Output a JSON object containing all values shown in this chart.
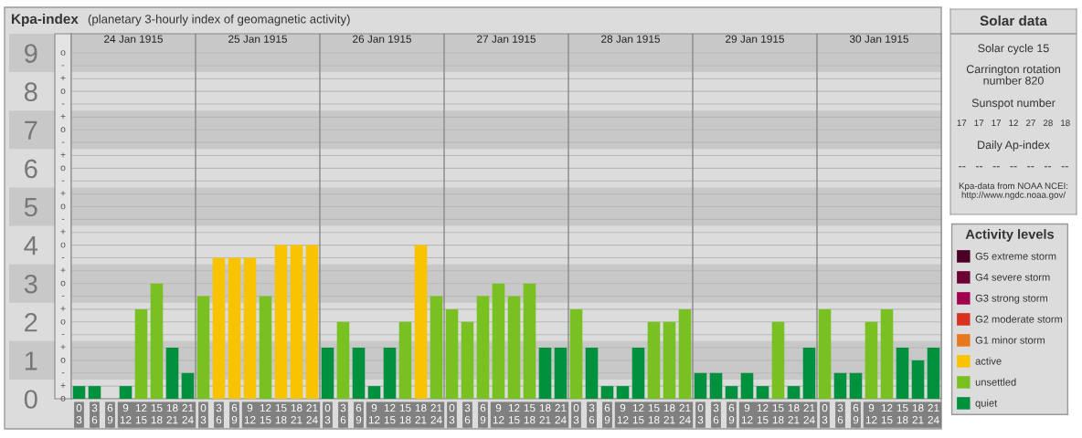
{
  "chart_data": [
    {
      "type": "bar",
      "title": "Kpa-index",
      "subtitle": "(planetary 3-hourly index of geomagnetic activity)",
      "categories": [
        "0\n3",
        "3\n6",
        "6\n9",
        "9\n12",
        "12\n15",
        "15\n18",
        "18\n21",
        "21\n24",
        "0\n3",
        "3\n6",
        "6\n9",
        "9\n12",
        "12\n15",
        "15\n18",
        "18\n21",
        "21\n24",
        "0\n3",
        "3\n6",
        "6\n9",
        "9\n12",
        "12\n15",
        "15\n18",
        "18\n21",
        "21\n24",
        "0\n3",
        "3\n6",
        "6\n9",
        "9\n12",
        "12\n15",
        "15\n18",
        "18\n21",
        "21\n24",
        "0\n3",
        "3\n6",
        "6\n9",
        "9\n12",
        "12\n15",
        "15\n18",
        "18\n21",
        "21\n24",
        "0\n3",
        "3\n6",
        "6\n9",
        "9\n12",
        "12\n15",
        "15\n18",
        "18\n21",
        "21\n24",
        "0\n3",
        "3\n6",
        "6\n9",
        "9\n12",
        "12\n15",
        "15\n18",
        "18\n21",
        "21\n24"
      ],
      "stacked": true,
      "series": [
        {
          "name": "G5 extreme storm",
          "color": "#4a0024",
          "values": [
            null,
            null,
            null,
            null,
            null,
            null,
            null,
            null,
            null,
            null,
            null,
            null,
            null,
            null,
            null,
            null,
            null,
            null,
            null,
            null,
            null,
            null,
            null,
            null,
            null,
            null,
            null,
            null,
            null,
            null,
            null,
            null,
            null,
            null,
            null,
            null,
            null,
            null,
            null,
            null,
            null,
            null,
            null,
            null,
            null,
            null,
            null,
            null,
            null,
            null,
            null,
            null,
            null,
            null,
            null,
            null
          ]
        },
        {
          "name": "G4 severe storm",
          "color": "#6c0036",
          "values": [
            null,
            null,
            null,
            null,
            null,
            null,
            null,
            null,
            null,
            null,
            null,
            null,
            null,
            null,
            null,
            null,
            null,
            null,
            null,
            null,
            null,
            null,
            null,
            null,
            null,
            null,
            null,
            null,
            null,
            null,
            null,
            null,
            null,
            null,
            null,
            null,
            null,
            null,
            null,
            null,
            null,
            null,
            null,
            null,
            null,
            null,
            null,
            null,
            null,
            null,
            null,
            null,
            null,
            null,
            null,
            null
          ]
        },
        {
          "name": "G3 strong storm",
          "color": "#a0004e",
          "values": [
            null,
            null,
            null,
            null,
            null,
            null,
            null,
            null,
            null,
            null,
            null,
            null,
            null,
            null,
            null,
            null,
            null,
            null,
            null,
            null,
            null,
            null,
            null,
            null,
            null,
            null,
            null,
            null,
            null,
            null,
            null,
            null,
            null,
            null,
            null,
            null,
            null,
            null,
            null,
            null,
            null,
            null,
            null,
            null,
            null,
            null,
            null,
            null,
            null,
            null,
            null,
            null,
            null,
            null,
            null,
            null
          ]
        },
        {
          "name": "G2 moderate storm",
          "color": "#d8321e",
          "values": [
            null,
            null,
            null,
            null,
            null,
            null,
            null,
            null,
            null,
            null,
            null,
            null,
            null,
            null,
            null,
            null,
            null,
            null,
            null,
            null,
            null,
            null,
            null,
            null,
            null,
            null,
            null,
            null,
            null,
            null,
            null,
            null,
            null,
            null,
            null,
            null,
            null,
            null,
            null,
            null,
            null,
            null,
            null,
            null,
            null,
            null,
            null,
            null,
            null,
            null,
            null,
            null,
            null,
            null,
            null,
            null
          ]
        },
        {
          "name": "G1 minor storm",
          "color": "#e8781e",
          "values": [
            null,
            null,
            null,
            null,
            null,
            null,
            null,
            null,
            null,
            null,
            null,
            null,
            null,
            null,
            null,
            null,
            null,
            null,
            null,
            null,
            null,
            null,
            null,
            null,
            null,
            null,
            null,
            null,
            null,
            null,
            null,
            null,
            null,
            null,
            null,
            null,
            null,
            null,
            null,
            null,
            null,
            null,
            null,
            null,
            null,
            null,
            null,
            null,
            null,
            null,
            null,
            null,
            null,
            null,
            null,
            null
          ]
        },
        {
          "name": "active",
          "color": "#f8c300",
          "values": [
            null,
            null,
            null,
            null,
            null,
            null,
            null,
            null,
            null,
            3.67,
            3.67,
            3.67,
            null,
            4,
            4,
            4,
            null,
            null,
            null,
            null,
            null,
            null,
            4,
            null,
            null,
            null,
            null,
            null,
            null,
            null,
            null,
            null,
            null,
            null,
            null,
            null,
            null,
            null,
            null,
            null,
            null,
            null,
            null,
            null,
            null,
            null,
            null,
            null,
            null,
            null,
            null,
            null,
            null,
            null,
            null,
            null
          ]
        },
        {
          "name": "unsettled",
          "color": "#79c121",
          "values": [
            null,
            null,
            null,
            null,
            2.33,
            3,
            null,
            null,
            2.67,
            null,
            null,
            null,
            2.67,
            null,
            null,
            null,
            null,
            2,
            null,
            null,
            null,
            2,
            null,
            2.67,
            2.33,
            2,
            2.67,
            3,
            2.67,
            3,
            null,
            null,
            2.33,
            null,
            null,
            null,
            null,
            2,
            2,
            2.33,
            null,
            null,
            null,
            null,
            null,
            2,
            null,
            null,
            2.33,
            null,
            null,
            2,
            2.33,
            null,
            null,
            null
          ]
        },
        {
          "name": "quiet",
          "color": "#00913f",
          "values": [
            0.33,
            0.33,
            0,
            0.33,
            null,
            null,
            1.33,
            0.67,
            null,
            null,
            null,
            null,
            null,
            null,
            null,
            null,
            1.33,
            null,
            1.33,
            0.33,
            1.33,
            null,
            null,
            null,
            null,
            null,
            null,
            null,
            null,
            null,
            1.33,
            1.33,
            null,
            1.33,
            0.33,
            0.33,
            1.33,
            null,
            null,
            null,
            0.67,
            0.67,
            0.33,
            0.67,
            0.33,
            null,
            0.33,
            1.33,
            null,
            0.67,
            0.67,
            null,
            null,
            1.33,
            1,
            1.33
          ]
        }
      ],
      "annotations": [
        "24 Jan 1915",
        "25 Jan 1915",
        "26 Jan 1915",
        "27 Jan 1915",
        "28 Jan 1915",
        "29 Jan 1915",
        "30 Jan 1915",
        "o",
        "+",
        "-",
        "o",
        "+",
        "-",
        "o",
        "+",
        "-",
        "o",
        "+",
        "-",
        "o",
        "+",
        "-",
        "o",
        "+",
        "-",
        "o",
        "+",
        "-",
        "o",
        "+",
        "-",
        "o",
        "+",
        "-",
        "o"
      ],
      "ylim": [
        0,
        9.5
      ],
      "yticks": [
        0,
        {
          "value": 0.33,
          "label": null
        },
        {
          "value": 0.67,
          "label": null
        },
        1,
        {
          "value": 1.33,
          "label": null
        },
        {
          "value": 1.67,
          "label": null
        },
        2,
        {
          "value": 2.33,
          "label": null
        },
        {
          "value": 2.67,
          "label": null
        },
        3,
        {
          "value": 3.33,
          "label": null
        },
        {
          "value": 3.67,
          "label": null
        },
        4,
        {
          "value": 4.33,
          "label": null
        },
        {
          "value": 4.67,
          "label": null
        },
        5,
        {
          "value": 5.33,
          "label": null
        },
        {
          "value": 5.67,
          "label": null
        },
        6,
        {
          "value": 6.33,
          "label": null
        },
        {
          "value": 6.67,
          "label": null
        },
        7,
        {
          "value": 7.33,
          "label": null
        },
        {
          "value": 7.67,
          "label": null
        },
        8,
        {
          "value": 8.33,
          "label": null
        },
        {
          "value": 8.67,
          "label": null
        },
        9
      ],
      "bands": [
        {
          "axis": "y",
          "from": 0.5,
          "to": 1.5,
          "color": "#c8c8c8"
        },
        {
          "axis": "y",
          "from": 2.5,
          "to": 3.5,
          "color": "#c8c8c8"
        },
        {
          "axis": "y",
          "from": 4.5,
          "to": 5.5,
          "color": "#c8c8c8"
        },
        {
          "axis": "y",
          "from": 6.5,
          "to": 7.5,
          "color": "#c8c8c8"
        },
        {
          "axis": "y",
          "from": 8.5,
          "to": 9.5,
          "color": "#c8c8c8"
        }
      ],
      "grid": "y",
      "legend": "right",
      "legend_title": "Activity levels"
    },
    {
      "type": "other",
      "title": "Solar data",
      "annotations": [
        "Solar cycle 15",
        "Carrington rotation\nnumber 820",
        "Sunspot number",
        "17   17   17   12   27   28   18",
        "Daily Ap-index",
        "--   --   --   --   --   --   --",
        "Kpa-data from NOAA NCEI:\nhttp://www.ngdc.noaa.gov/"
      ]
    }
  ]
}
